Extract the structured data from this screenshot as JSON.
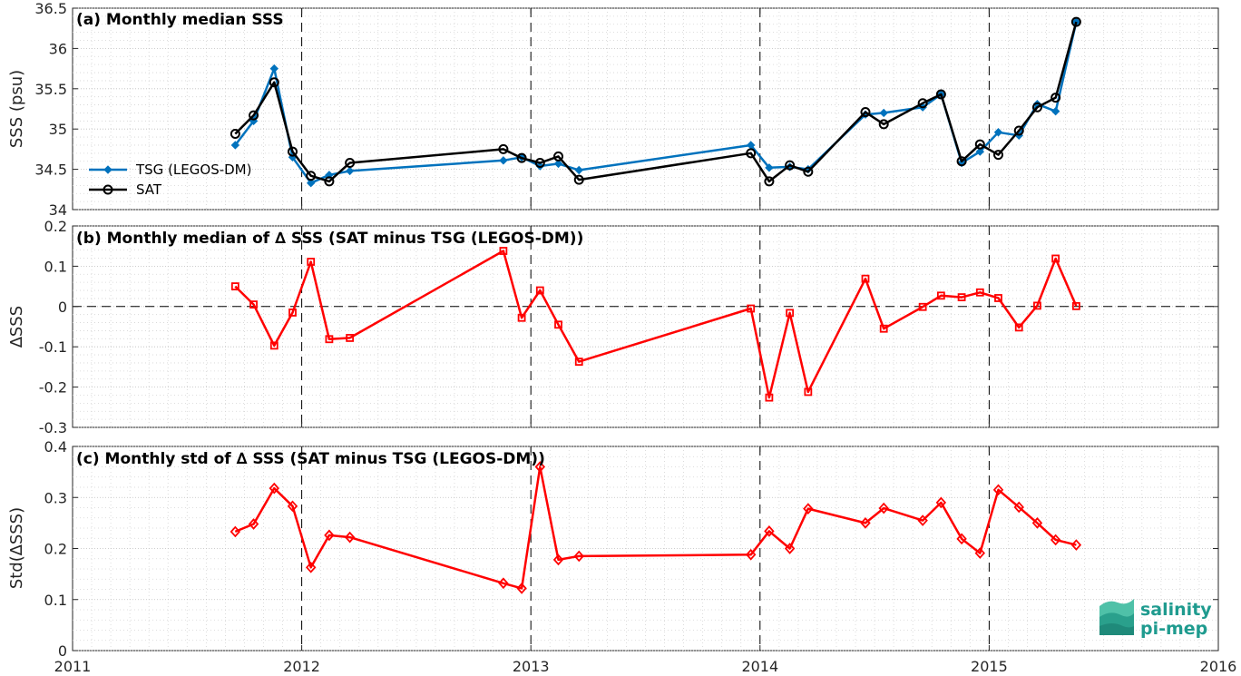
{
  "logo": {
    "line1": "salinity",
    "line2": "pi-mep"
  },
  "colors": {
    "tsg": "#0072bd",
    "sat": "#000000",
    "delta": "#ff0000",
    "logo": "#1f9b8f"
  },
  "x_axis": {
    "ticks": [
      2011,
      2012,
      2013,
      2014,
      2015,
      2016
    ],
    "labels": [
      "2011",
      "2012",
      "2013",
      "2014",
      "2015",
      "2016"
    ],
    "range": [
      2011,
      2016
    ]
  },
  "chart_data": [
    {
      "type": "line",
      "title": "(a) Monthly median SSS",
      "ylabel": "SSS (psu)",
      "ylim": [
        34,
        36.5
      ],
      "yticks": [
        34,
        34.5,
        35,
        35.5,
        36,
        36.5
      ],
      "ytick_labels": [
        "34",
        "34.5",
        "35",
        "35.5",
        "36",
        "36.5"
      ],
      "grid": true,
      "legend_position": "middle-left",
      "series": [
        {
          "name": "TSG (LEGOS-DM)",
          "color": "#0072bd",
          "marker": "filled-diamond",
          "x": [
            2011.71,
            2011.79,
            2011.88,
            2011.96,
            2012.04,
            2012.12,
            2012.21,
            2012.88,
            2012.96,
            2013.04,
            2013.12,
            2013.21,
            2013.96,
            2014.04,
            2014.13,
            2014.21,
            2014.46,
            2014.54,
            2014.71,
            2014.79,
            2014.88,
            2014.96,
            2015.04,
            2015.13,
            2015.21,
            2015.29,
            2015.38
          ],
          "y": [
            34.8,
            35.1,
            35.75,
            34.65,
            34.33,
            34.43,
            34.48,
            34.61,
            34.65,
            34.54,
            34.57,
            34.49,
            34.8,
            34.52,
            34.53,
            34.5,
            35.18,
            35.2,
            35.27,
            35.43,
            34.58,
            34.72,
            34.96,
            34.92,
            35.31,
            35.22,
            36.33
          ]
        },
        {
          "name": "SAT",
          "color": "#000000",
          "marker": "open-circle",
          "x": [
            2011.71,
            2011.79,
            2011.88,
            2011.96,
            2012.04,
            2012.12,
            2012.21,
            2012.88,
            2012.96,
            2013.04,
            2013.12,
            2013.21,
            2013.96,
            2014.04,
            2014.13,
            2014.21,
            2014.46,
            2014.54,
            2014.71,
            2014.79,
            2014.88,
            2014.96,
            2015.04,
            2015.13,
            2015.21,
            2015.29,
            2015.38
          ],
          "y": [
            34.94,
            35.17,
            35.58,
            34.72,
            34.42,
            34.35,
            34.58,
            34.75,
            34.64,
            34.58,
            34.66,
            34.37,
            34.7,
            34.35,
            34.55,
            34.47,
            35.21,
            35.06,
            35.32,
            35.43,
            34.6,
            34.81,
            34.68,
            34.98,
            35.27,
            35.39,
            36.33
          ]
        }
      ]
    },
    {
      "type": "line",
      "title": "(b) Monthly median of ∆ SSS (SAT minus TSG (LEGOS-DM))",
      "ylabel": "∆SSS",
      "ylim": [
        -0.3,
        0.2
      ],
      "yticks": [
        -0.3,
        -0.2,
        -0.1,
        0,
        0.1,
        0.2
      ],
      "ytick_labels": [
        "-0.3",
        "-0.2",
        "-0.1",
        "0",
        "0.1",
        "0.2"
      ],
      "grid": true,
      "zero_line": true,
      "series": [
        {
          "color": "#ff0000",
          "marker": "open-square",
          "x": [
            2011.71,
            2011.79,
            2011.88,
            2011.96,
            2012.04,
            2012.12,
            2012.21,
            2012.88,
            2012.96,
            2013.04,
            2013.12,
            2013.21,
            2013.96,
            2014.04,
            2014.13,
            2014.21,
            2014.46,
            2014.54,
            2014.71,
            2014.79,
            2014.88,
            2014.96,
            2015.04,
            2015.13,
            2015.21,
            2015.29,
            2015.38
          ],
          "y": [
            0.05,
            0.005,
            -0.097,
            -0.015,
            0.111,
            -0.081,
            -0.078,
            0.138,
            -0.028,
            0.04,
            -0.045,
            -0.137,
            -0.005,
            -0.226,
            -0.016,
            -0.212,
            0.069,
            -0.055,
            -0.001,
            0.027,
            0.023,
            0.035,
            0.021,
            -0.052,
            0.002,
            0.119,
            0.001
          ]
        }
      ]
    },
    {
      "type": "line",
      "title": "(c) Monthly std of ∆ SSS (SAT minus TSG (LEGOS-DM))",
      "ylabel": "Std(∆SSS)",
      "ylim": [
        0,
        0.4
      ],
      "yticks": [
        0,
        0.1,
        0.2,
        0.3,
        0.4
      ],
      "ytick_labels": [
        "0",
        "0.1",
        "0.2",
        "0.3",
        "0.4"
      ],
      "grid": true,
      "series": [
        {
          "color": "#ff0000",
          "marker": "open-diamond",
          "x": [
            2011.71,
            2011.79,
            2011.88,
            2011.96,
            2012.04,
            2012.12,
            2012.21,
            2012.88,
            2012.96,
            2013.04,
            2013.12,
            2013.21,
            2013.96,
            2014.04,
            2014.13,
            2014.21,
            2014.46,
            2014.54,
            2014.71,
            2014.79,
            2014.88,
            2014.96,
            2015.04,
            2015.13,
            2015.21,
            2015.29,
            2015.38
          ],
          "y": [
            0.233,
            0.248,
            0.318,
            0.283,
            0.163,
            0.226,
            0.222,
            0.132,
            0.122,
            0.36,
            0.178,
            0.185,
            0.188,
            0.234,
            0.2,
            0.278,
            0.25,
            0.279,
            0.255,
            0.29,
            0.219,
            0.191,
            0.315,
            0.281,
            0.25,
            0.217,
            0.207
          ]
        }
      ]
    }
  ]
}
